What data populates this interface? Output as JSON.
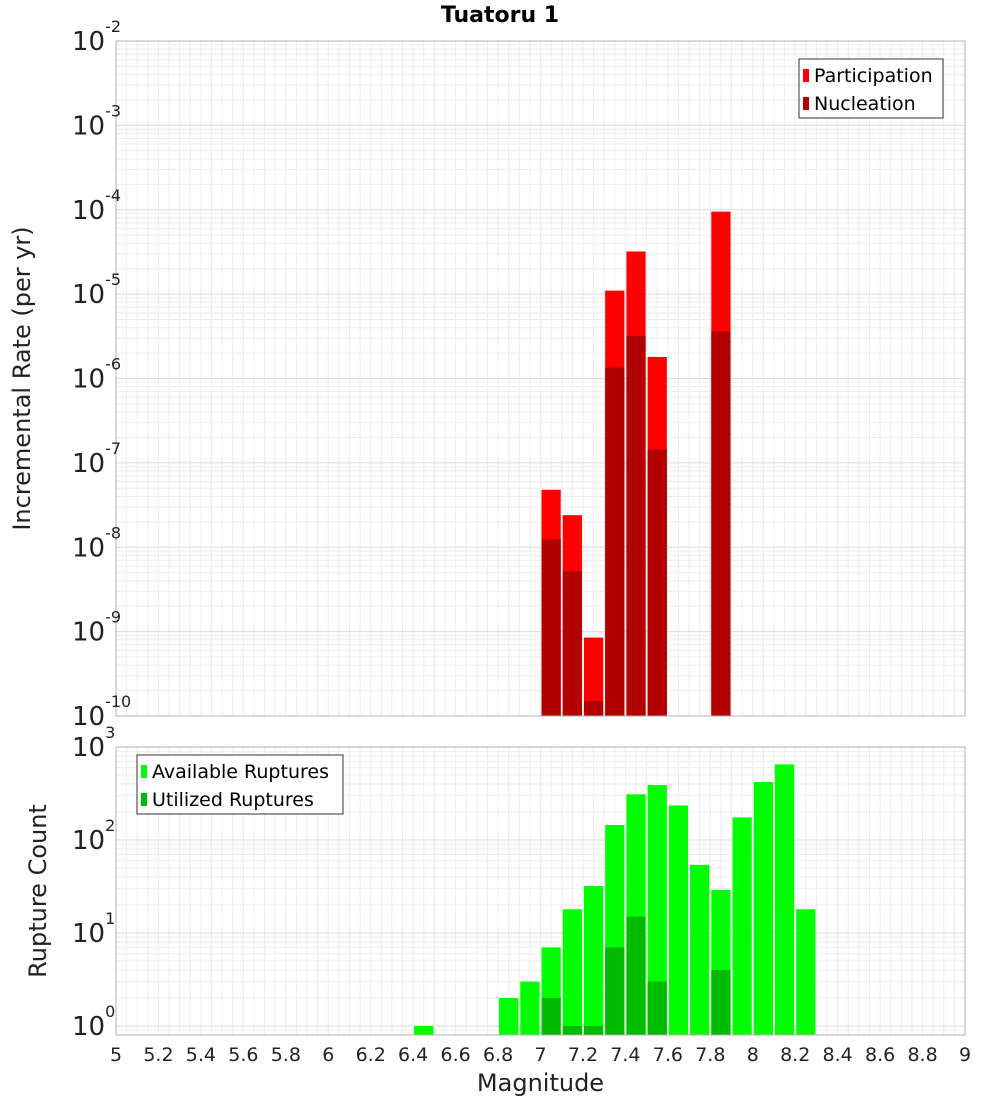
{
  "title": "Tuatoru 1",
  "chart_data": [
    {
      "type": "bar",
      "subtype": "overlaid",
      "ylabel": "Incremental Rate (per yr)",
      "yscale": "log",
      "ylim": [
        1e-10,
        0.01
      ],
      "xlim": [
        5,
        9
      ],
      "bar_width": 0.1,
      "grid": true,
      "legend_position": "top-right",
      "y_ticks": [
        {
          "base": "10",
          "exp": "-10"
        },
        {
          "base": "10",
          "exp": "-9"
        },
        {
          "base": "10",
          "exp": "-8"
        },
        {
          "base": "10",
          "exp": "-7"
        },
        {
          "base": "10",
          "exp": "-6"
        },
        {
          "base": "10",
          "exp": "-5"
        },
        {
          "base": "10",
          "exp": "-4"
        },
        {
          "base": "10",
          "exp": "-3"
        },
        {
          "base": "10",
          "exp": "-2"
        }
      ],
      "series": [
        {
          "name": "Participation",
          "color": "#ff0000",
          "points": [
            {
              "x": 7.05,
              "y": 4.8e-08
            },
            {
              "x": 7.15,
              "y": 2.4e-08
            },
            {
              "x": 7.25,
              "y": 8.5e-10
            },
            {
              "x": 7.35,
              "y": 1.1e-05
            },
            {
              "x": 7.45,
              "y": 3.2e-05
            },
            {
              "x": 7.55,
              "y": 1.8e-06
            },
            {
              "x": 7.85,
              "y": 9.5e-05
            }
          ]
        },
        {
          "name": "Nucleation",
          "color": "#b30000",
          "points": [
            {
              "x": 7.05,
              "y": 1.25e-08
            },
            {
              "x": 7.15,
              "y": 5.2e-09
            },
            {
              "x": 7.25,
              "y": 1.5e-10
            },
            {
              "x": 7.35,
              "y": 1.35e-06
            },
            {
              "x": 7.45,
              "y": 3.2e-06
            },
            {
              "x": 7.55,
              "y": 1.45e-07
            },
            {
              "x": 7.85,
              "y": 3.6e-06
            }
          ]
        }
      ]
    },
    {
      "type": "bar",
      "subtype": "overlaid",
      "xlabel": "Magnitude",
      "ylabel": "Rupture Count",
      "yscale": "log",
      "ylim": [
        0.8,
        1000
      ],
      "xlim": [
        5,
        9
      ],
      "bar_width": 0.1,
      "grid": true,
      "legend_position": "top-left",
      "x_ticks": [
        "5",
        "5.2",
        "5.4",
        "5.6",
        "5.8",
        "6",
        "6.2",
        "6.4",
        "6.6",
        "6.8",
        "7",
        "7.2",
        "7.4",
        "7.6",
        "7.8",
        "8",
        "8.2",
        "8.4",
        "8.6",
        "8.8",
        "9"
      ],
      "y_ticks": [
        {
          "base": "10",
          "exp": "0"
        },
        {
          "base": "10",
          "exp": "1"
        },
        {
          "base": "10",
          "exp": "2"
        },
        {
          "base": "10",
          "exp": "3"
        }
      ],
      "series": [
        {
          "name": "Available Ruptures",
          "color": "#00ff00",
          "points": [
            {
              "x": 6.45,
              "y": 1
            },
            {
              "x": 6.85,
              "y": 2
            },
            {
              "x": 6.95,
              "y": 3
            },
            {
              "x": 7.05,
              "y": 7
            },
            {
              "x": 7.15,
              "y": 18
            },
            {
              "x": 7.25,
              "y": 32
            },
            {
              "x": 7.35,
              "y": 145
            },
            {
              "x": 7.45,
              "y": 310
            },
            {
              "x": 7.55,
              "y": 390
            },
            {
              "x": 7.65,
              "y": 235
            },
            {
              "x": 7.75,
              "y": 54
            },
            {
              "x": 7.85,
              "y": 29
            },
            {
              "x": 7.95,
              "y": 175
            },
            {
              "x": 8.05,
              "y": 420
            },
            {
              "x": 8.15,
              "y": 650
            },
            {
              "x": 8.25,
              "y": 18
            }
          ]
        },
        {
          "name": "Utilized Ruptures",
          "color": "#00bb00",
          "points": [
            {
              "x": 7.05,
              "y": 2
            },
            {
              "x": 7.15,
              "y": 1
            },
            {
              "x": 7.25,
              "y": 1
            },
            {
              "x": 7.35,
              "y": 7
            },
            {
              "x": 7.45,
              "y": 15
            },
            {
              "x": 7.55,
              "y": 3
            },
            {
              "x": 7.85,
              "y": 4
            }
          ]
        }
      ]
    }
  ]
}
